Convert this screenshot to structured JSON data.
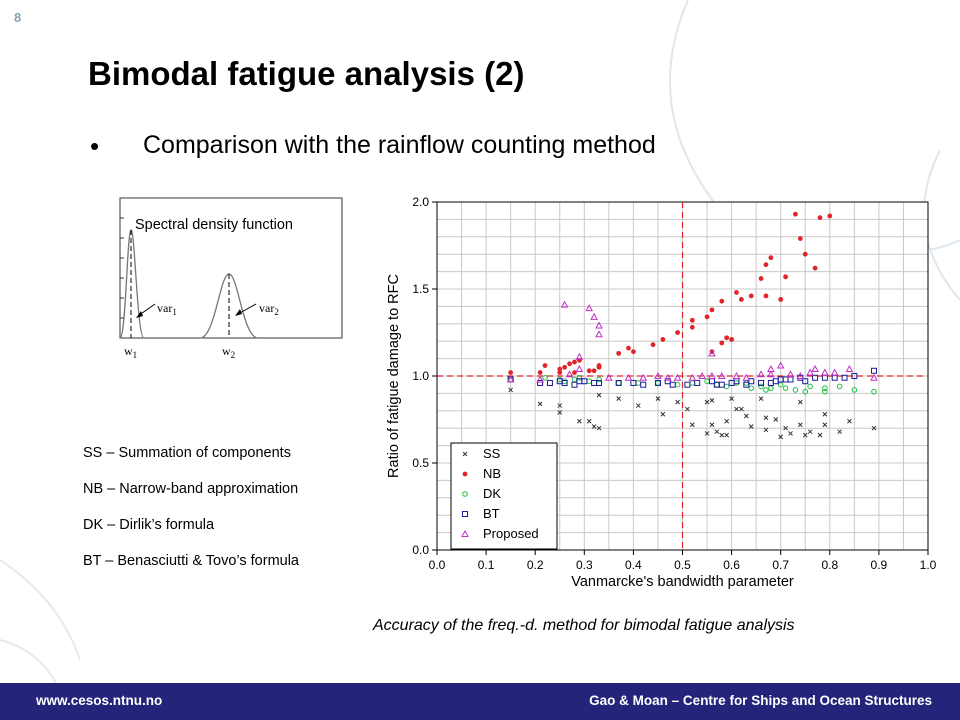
{
  "slide": {
    "number": "8",
    "title": "Bimodal fatigue analysis (2)",
    "bullet": "Comparison with the rainflow counting method",
    "methods": [
      "SS – Summation of components",
      "NB – Narrow-band approximation",
      "DK – Dirlik’s formula",
      "BT – Benasciutti & Tovo’s formula"
    ],
    "caption": "Accuracy of the freq.-d. method for bimodal fatigue analysis"
  },
  "footer": {
    "left": "www.cesos.ntnu.no",
    "right": "Gao & Moan – Centre for Ships and Ocean Structures",
    "color": "#24247a"
  },
  "spectrum": {
    "label": "Spectral density function",
    "var1": "var",
    "var1_sub": "1",
    "var2": "var",
    "var2_sub": "2",
    "w1": "w",
    "w1_sub": "1",
    "w2": "w",
    "w2_sub": "2"
  },
  "chart_data": {
    "type": "scatter",
    "xlabel": "Vanmarcke's bandwidth parameter",
    "ylabel": "Ratio of fatigue damage to RFC",
    "xlim": [
      0.0,
      1.0
    ],
    "ylim": [
      0.0,
      2.0
    ],
    "xticks": [
      "0.0",
      "0.1",
      "0.2",
      "0.3",
      "0.4",
      "0.5",
      "0.6",
      "0.7",
      "0.8",
      "0.9",
      "1.0"
    ],
    "yticks": [
      "0.0",
      "0.5",
      "1.0",
      "1.5",
      "2.0"
    ],
    "grid": true,
    "legend_position": "bottom-left",
    "reference_lines": {
      "x": 0.5,
      "y": 1.0,
      "color": "#e0242a"
    },
    "series": [
      {
        "name": "SS",
        "marker": "x",
        "color": "#333333",
        "points": [
          [
            0.15,
            0.92
          ],
          [
            0.21,
            0.84
          ],
          [
            0.25,
            0.83
          ],
          [
            0.25,
            0.79
          ],
          [
            0.29,
            0.74
          ],
          [
            0.31,
            0.74
          ],
          [
            0.32,
            0.71
          ],
          [
            0.33,
            0.7
          ],
          [
            0.33,
            0.89
          ],
          [
            0.37,
            0.87
          ],
          [
            0.41,
            0.83
          ],
          [
            0.45,
            0.87
          ],
          [
            0.46,
            0.78
          ],
          [
            0.49,
            0.85
          ],
          [
            0.51,
            0.81
          ],
          [
            0.52,
            0.72
          ],
          [
            0.55,
            0.67
          ],
          [
            0.55,
            0.85
          ],
          [
            0.56,
            0.72
          ],
          [
            0.56,
            0.86
          ],
          [
            0.57,
            0.68
          ],
          [
            0.58,
            0.66
          ],
          [
            0.59,
            0.66
          ],
          [
            0.59,
            0.74
          ],
          [
            0.6,
            0.87
          ],
          [
            0.61,
            0.81
          ],
          [
            0.62,
            0.81
          ],
          [
            0.63,
            0.77
          ],
          [
            0.64,
            0.71
          ],
          [
            0.66,
            0.87
          ],
          [
            0.67,
            0.76
          ],
          [
            0.67,
            0.69
          ],
          [
            0.69,
            0.75
          ],
          [
            0.7,
            0.65
          ],
          [
            0.71,
            0.7
          ],
          [
            0.72,
            0.67
          ],
          [
            0.74,
            0.72
          ],
          [
            0.75,
            0.66
          ],
          [
            0.76,
            0.68
          ],
          [
            0.78,
            0.66
          ],
          [
            0.79,
            0.72
          ],
          [
            0.82,
            0.68
          ],
          [
            0.84,
            0.74
          ],
          [
            0.89,
            0.7
          ],
          [
            0.74,
            0.85
          ],
          [
            0.79,
            0.78
          ]
        ]
      },
      {
        "name": "NB",
        "marker": "dot",
        "color": "#e0242a",
        "points": [
          [
            0.15,
            1.02
          ],
          [
            0.21,
            1.02
          ],
          [
            0.22,
            1.06
          ],
          [
            0.25,
            1.04
          ],
          [
            0.26,
            1.05
          ],
          [
            0.27,
            1.07
          ],
          [
            0.28,
            1.08
          ],
          [
            0.29,
            1.09
          ],
          [
            0.31,
            1.03
          ],
          [
            0.32,
            1.03
          ],
          [
            0.33,
            1.06
          ],
          [
            0.33,
            1.05
          ],
          [
            0.37,
            1.13
          ],
          [
            0.39,
            1.16
          ],
          [
            0.4,
            1.14
          ],
          [
            0.44,
            1.18
          ],
          [
            0.46,
            1.21
          ],
          [
            0.49,
            1.25
          ],
          [
            0.52,
            1.32
          ],
          [
            0.52,
            1.28
          ],
          [
            0.55,
            1.34
          ],
          [
            0.56,
            1.38
          ],
          [
            0.56,
            1.14
          ],
          [
            0.58,
            1.19
          ],
          [
            0.58,
            1.43
          ],
          [
            0.59,
            1.22
          ],
          [
            0.6,
            1.21
          ],
          [
            0.61,
            1.48
          ],
          [
            0.62,
            1.44
          ],
          [
            0.64,
            1.46
          ],
          [
            0.66,
            1.56
          ],
          [
            0.67,
            1.64
          ],
          [
            0.67,
            1.46
          ],
          [
            0.68,
            1.68
          ],
          [
            0.7,
            1.44
          ],
          [
            0.71,
            1.57
          ],
          [
            0.73,
            1.93
          ],
          [
            0.74,
            1.79
          ],
          [
            0.75,
            1.7
          ],
          [
            0.77,
            1.62
          ],
          [
            0.78,
            1.91
          ],
          [
            0.8,
            1.92
          ],
          [
            0.25,
            1.02
          ],
          [
            0.28,
            1.02
          ]
        ]
      },
      {
        "name": "DK",
        "marker": "circle",
        "color": "#1dbf3a",
        "points": [
          [
            0.15,
            0.98
          ],
          [
            0.22,
            0.99
          ],
          [
            0.25,
            0.98
          ],
          [
            0.26,
            0.97
          ],
          [
            0.28,
            0.98
          ],
          [
            0.29,
            0.99
          ],
          [
            0.31,
            0.97
          ],
          [
            0.33,
            0.98
          ],
          [
            0.37,
            0.96
          ],
          [
            0.41,
            0.96
          ],
          [
            0.45,
            0.96
          ],
          [
            0.49,
            0.95
          ],
          [
            0.52,
            0.96
          ],
          [
            0.55,
            0.97
          ],
          [
            0.57,
            0.95
          ],
          [
            0.59,
            0.94
          ],
          [
            0.61,
            0.96
          ],
          [
            0.63,
            0.96
          ],
          [
            0.64,
            0.93
          ],
          [
            0.66,
            0.94
          ],
          [
            0.67,
            0.92
          ],
          [
            0.68,
            0.93
          ],
          [
            0.7,
            0.95
          ],
          [
            0.71,
            0.93
          ],
          [
            0.73,
            0.92
          ],
          [
            0.75,
            0.91
          ],
          [
            0.76,
            0.94
          ],
          [
            0.79,
            0.93
          ],
          [
            0.79,
            0.91
          ],
          [
            0.82,
            0.94
          ],
          [
            0.85,
            0.92
          ],
          [
            0.89,
            0.91
          ]
        ]
      },
      {
        "name": "BT",
        "marker": "square",
        "color": "#1c1c9e",
        "points": [
          [
            0.15,
            0.98
          ],
          [
            0.21,
            0.96
          ],
          [
            0.23,
            0.96
          ],
          [
            0.25,
            0.97
          ],
          [
            0.26,
            0.96
          ],
          [
            0.28,
            0.95
          ],
          [
            0.29,
            0.97
          ],
          [
            0.3,
            0.97
          ],
          [
            0.32,
            0.96
          ],
          [
            0.33,
            0.96
          ],
          [
            0.37,
            0.96
          ],
          [
            0.4,
            0.96
          ],
          [
            0.42,
            0.95
          ],
          [
            0.45,
            0.96
          ],
          [
            0.47,
            0.97
          ],
          [
            0.48,
            0.95
          ],
          [
            0.51,
            0.95
          ],
          [
            0.53,
            0.96
          ],
          [
            0.56,
            0.97
          ],
          [
            0.57,
            0.95
          ],
          [
            0.58,
            0.95
          ],
          [
            0.6,
            0.96
          ],
          [
            0.61,
            0.97
          ],
          [
            0.63,
            0.95
          ],
          [
            0.64,
            0.97
          ],
          [
            0.66,
            0.96
          ],
          [
            0.68,
            0.96
          ],
          [
            0.69,
            0.97
          ],
          [
            0.7,
            0.98
          ],
          [
            0.71,
            0.98
          ],
          [
            0.72,
            0.98
          ],
          [
            0.74,
            0.99
          ],
          [
            0.75,
            0.97
          ],
          [
            0.77,
            0.99
          ],
          [
            0.79,
            0.99
          ],
          [
            0.81,
            0.99
          ],
          [
            0.83,
            0.99
          ],
          [
            0.85,
            1.0
          ],
          [
            0.89,
            1.03
          ]
        ]
      },
      {
        "name": "Proposed",
        "marker": "triangle",
        "color": "#c230c8",
        "points": [
          [
            0.15,
            0.98
          ],
          [
            0.21,
            0.98
          ],
          [
            0.26,
            1.41
          ],
          [
            0.27,
            1.01
          ],
          [
            0.29,
            1.11
          ],
          [
            0.29,
            1.04
          ],
          [
            0.31,
            1.39
          ],
          [
            0.32,
            1.34
          ],
          [
            0.33,
            1.29
          ],
          [
            0.33,
            1.24
          ],
          [
            0.35,
            0.99
          ],
          [
            0.39,
            0.99
          ],
          [
            0.42,
            0.99
          ],
          [
            0.45,
            1.0
          ],
          [
            0.47,
            0.99
          ],
          [
            0.49,
            0.99
          ],
          [
            0.52,
            0.99
          ],
          [
            0.54,
            1.0
          ],
          [
            0.56,
            1.0
          ],
          [
            0.56,
            1.13
          ],
          [
            0.58,
            1.0
          ],
          [
            0.61,
            1.0
          ],
          [
            0.63,
            0.99
          ],
          [
            0.66,
            1.01
          ],
          [
            0.68,
            1.01
          ],
          [
            0.68,
            1.04
          ],
          [
            0.7,
            1.06
          ],
          [
            0.72,
            1.01
          ],
          [
            0.74,
            1.0
          ],
          [
            0.76,
            1.02
          ],
          [
            0.77,
            1.04
          ],
          [
            0.79,
            1.02
          ],
          [
            0.81,
            1.02
          ],
          [
            0.84,
            1.04
          ],
          [
            0.89,
            0.99
          ]
        ]
      }
    ]
  }
}
